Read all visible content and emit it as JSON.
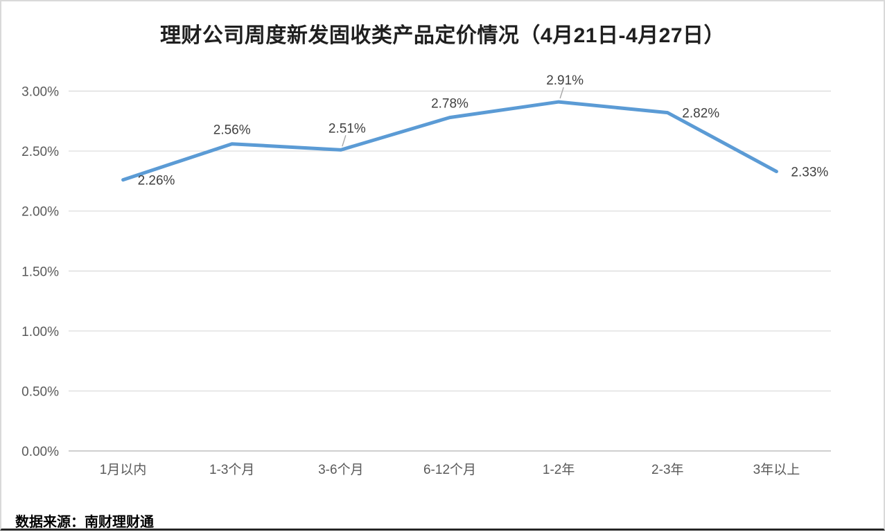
{
  "title": "理财公司周度新发固收类产品定价情况（4月21日-4月27日）",
  "source_note": "数据来源：南财理财通",
  "colors": {
    "line": "#5B9BD5",
    "gridline": "#D9D9D9",
    "axis_line": "#BFBFBF",
    "axis_label": "#595959",
    "data_label": "#404040",
    "title": "#1F1F1F",
    "leader_line": "#A6A6A6"
  },
  "chart_data": {
    "type": "line",
    "title": "理财公司周度新发固收类产品定价情况（4月21日-4月27日）",
    "categories": [
      "1月以内",
      "1-3个月",
      "3-6个月",
      "6-12个月",
      "1-2年",
      "2-3年",
      "3年以上"
    ],
    "series": [
      {
        "name": "新发固收类产品定价",
        "values": [
          2.26,
          2.56,
          2.51,
          2.78,
          2.91,
          2.82,
          2.33
        ],
        "data_labels": [
          "2.26%",
          "2.56%",
          "2.51%",
          "2.78%",
          "2.91%",
          "2.82%",
          "2.33%"
        ],
        "label_placements": [
          "right",
          "above",
          "above-leader",
          "above",
          "above-leader",
          "right",
          "right"
        ]
      }
    ],
    "xlabel": "",
    "ylabel": "",
    "ylim": [
      0,
      3.0
    ],
    "y_ticks": [
      {
        "value": 0.0,
        "label": "0.00%"
      },
      {
        "value": 0.5,
        "label": "0.50%"
      },
      {
        "value": 1.0,
        "label": "1.00%"
      },
      {
        "value": 1.5,
        "label": "1.50%"
      },
      {
        "value": 2.0,
        "label": "2.00%"
      },
      {
        "value": 2.5,
        "label": "2.50%"
      },
      {
        "value": 3.0,
        "label": "3.00%"
      }
    ],
    "grid": true,
    "legend": false
  }
}
